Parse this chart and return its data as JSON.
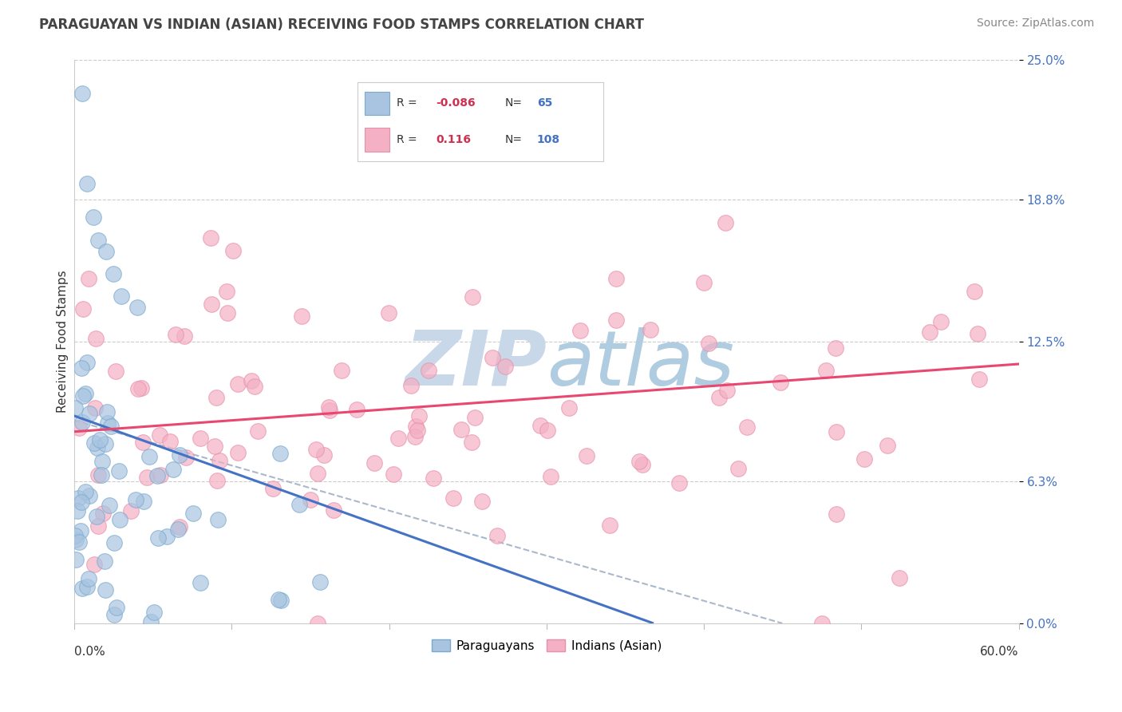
{
  "title": "PARAGUAYAN VS INDIAN (ASIAN) RECEIVING FOOD STAMPS CORRELATION CHART",
  "source_text": "Source: ZipAtlas.com",
  "ylabel": "Receiving Food Stamps",
  "ytick_labels": [
    "0.0%",
    "6.3%",
    "12.5%",
    "18.8%",
    "25.0%"
  ],
  "ytick_values": [
    0.0,
    6.3,
    12.5,
    18.8,
    25.0
  ],
  "xlim": [
    0.0,
    60.0
  ],
  "ylim": [
    0.0,
    25.0
  ],
  "paraguayan_color": "#a8c4e0",
  "paraguayan_edge_color": "#7aaad0",
  "indian_color": "#f4b0c4",
  "indian_edge_color": "#e890aa",
  "paraguayan_line_color": "#4472c4",
  "indian_line_color": "#e84870",
  "dashed_line_color": "#aab8cc",
  "background_color": "#ffffff",
  "grid_color": "#cccccc",
  "watermark_color": "#c8d8e8",
  "title_fontsize": 12,
  "source_fontsize": 10,
  "axis_label_fontsize": 11,
  "tick_fontsize": 11,
  "legend_R_color": "#d03050",
  "legend_N_color": "#4472c4",
  "legend_text_color": "#333333"
}
